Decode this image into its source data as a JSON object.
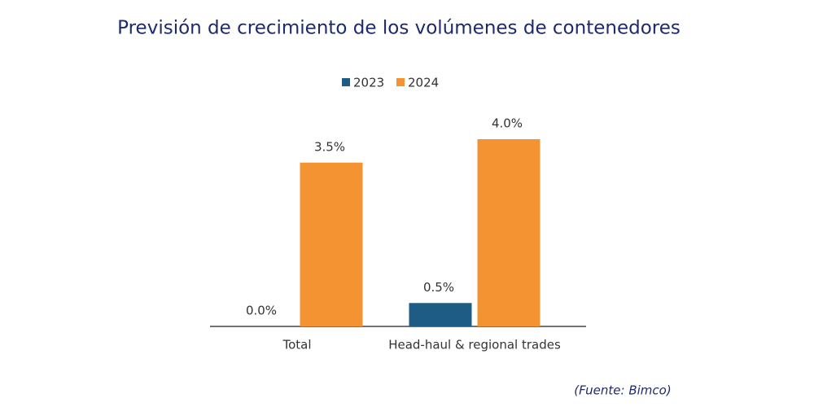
{
  "chart_data": {
    "type": "bar",
    "title": "Previsión de crecimiento de los volúmenes de contenedores",
    "categories": [
      "Total",
      "Head-haul & regional trades"
    ],
    "series": [
      {
        "name": "2023",
        "color": "#1f5c85",
        "values": [
          0.0,
          0.5
        ],
        "value_labels": [
          "0.0%",
          "0.5%"
        ]
      },
      {
        "name": "2024",
        "color": "#f39332",
        "values": [
          3.5,
          4.0
        ],
        "value_labels": [
          "3.5%",
          "4.0%"
        ]
      }
    ],
    "source": "(Fuente: Bimco)"
  }
}
